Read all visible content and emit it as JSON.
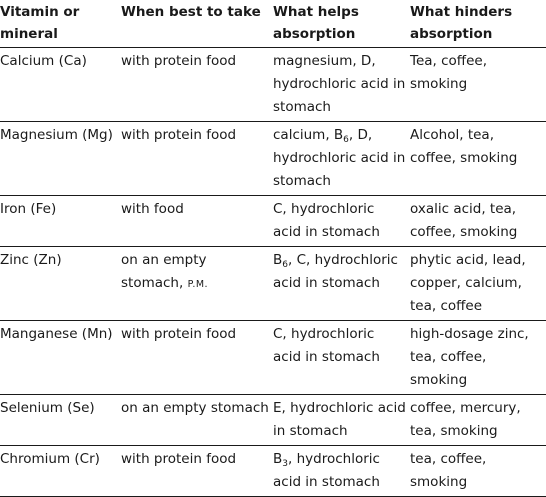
{
  "headers": {
    "col1": "Vitamin or mineral",
    "col2": "When best to take",
    "col3": "What helps absorption",
    "col4": "What hinders absorption"
  },
  "rows": [
    {
      "mineral": "Calcium (Ca)",
      "when": "with protein food",
      "helps": "magnesium, D, hydrochloric acid in stomach",
      "hinders": "Tea, coffee, smoking"
    },
    {
      "mineral": "Magnesium (Mg)",
      "when": "with protein food",
      "helps_pre": "calcium, B",
      "helps_sub": "6",
      "helps_post": ", D, hydrochloric acid in stomach",
      "hinders": "Alcohol, tea, coffee, smoking"
    },
    {
      "mineral": "Iron (Fe)",
      "when": "with food",
      "helps": "C, hydrochloric acid in stomach",
      "hinders": "oxalic acid, tea, coffee, smoking"
    },
    {
      "mineral": "Zinc (Zn)",
      "when_main": "on an empty stomach, ",
      "when_small": "P.M.",
      "helps_pre": "B",
      "helps_sub": "6",
      "helps_post": ", C, hydrochloric acid in stomach",
      "hinders": "phytic acid, lead, copper, calcium, tea, coffee"
    },
    {
      "mineral": "Manganese (Mn)",
      "when": "with protein food",
      "helps": "C, hydrochloric acid in stomach",
      "hinders": "high-dosage zinc, tea, coffee, smoking"
    },
    {
      "mineral": "Selenium (Se)",
      "when": "on an empty stomach",
      "helps": "E, hydrochloric acid in stomach",
      "hinders": "coffee, mercury, tea, smoking"
    },
    {
      "mineral": "Chromium (Cr)",
      "when": "with protein food",
      "helps_pre": "B",
      "helps_sub": "3",
      "helps_post": ", hydrochloric acid in stomach",
      "hinders": "tea, coffee, smoking"
    }
  ]
}
